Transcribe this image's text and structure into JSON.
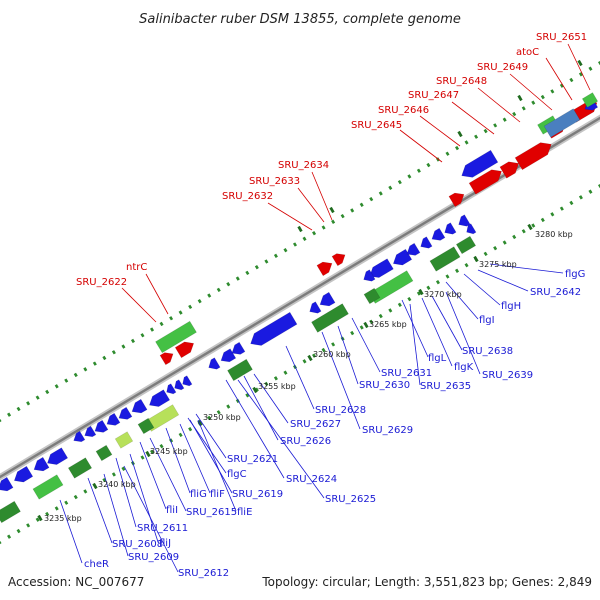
{
  "title": "Salinibacter ruber DSM 13855, complete genome",
  "footer": {
    "accession": "Accession: NC_007677",
    "summary": "Topology: circular; Length: 3,551,823 bp; Genes: 2,849"
  },
  "colors": {
    "backbone": "#8c8c8c",
    "tick": "#2e8b2e",
    "forward_gene": "#e00000",
    "reverse_gene": "#1a1ae0",
    "rna_green": "#44c044",
    "rna_dark": "#2e8b2e",
    "rna_light": "#b7e05a",
    "steel": "#4a7fbf",
    "red_label": "#d40000",
    "blue_label": "#1a1ad4"
  },
  "tick_labels": [
    "3235 kbp",
    "3240 kbp",
    "3245 kbp",
    "3250 kbp",
    "3255 kbp",
    "3260 kbp",
    "3265 kbp",
    "3270 kbp",
    "3275 kbp",
    "3280 kbp"
  ],
  "upper_labels": [
    "SRU_2651",
    "atoC",
    "SRU_2649",
    "SRU_2648",
    "SRU_2647",
    "SRU_2646",
    "SRU_2645",
    "SRU_2634",
    "SRU_2633",
    "SRU_2632",
    "ntrC",
    "SRU_2622"
  ],
  "lower_labels": [
    "flgG",
    "SRU_2642",
    "flgH",
    "flgI",
    "SRU_2638",
    "SRU_2639",
    "flgK",
    "flgL",
    "SRU_2635",
    "SRU_2631",
    "SRU_2630",
    "SRU_2628",
    "SRU_2629",
    "SRU_2627",
    "SRU_2626",
    "SRU_2621",
    "flgC",
    "SRU_2624",
    "SRU_2625",
    "fliF",
    "SRU_2619",
    "fliG",
    "fliE",
    "SRU_2615",
    "fliI",
    "SRU_2611",
    "fliJ",
    "SRU_2608",
    "SRU_2609",
    "SRU_2612",
    "cheR"
  ]
}
